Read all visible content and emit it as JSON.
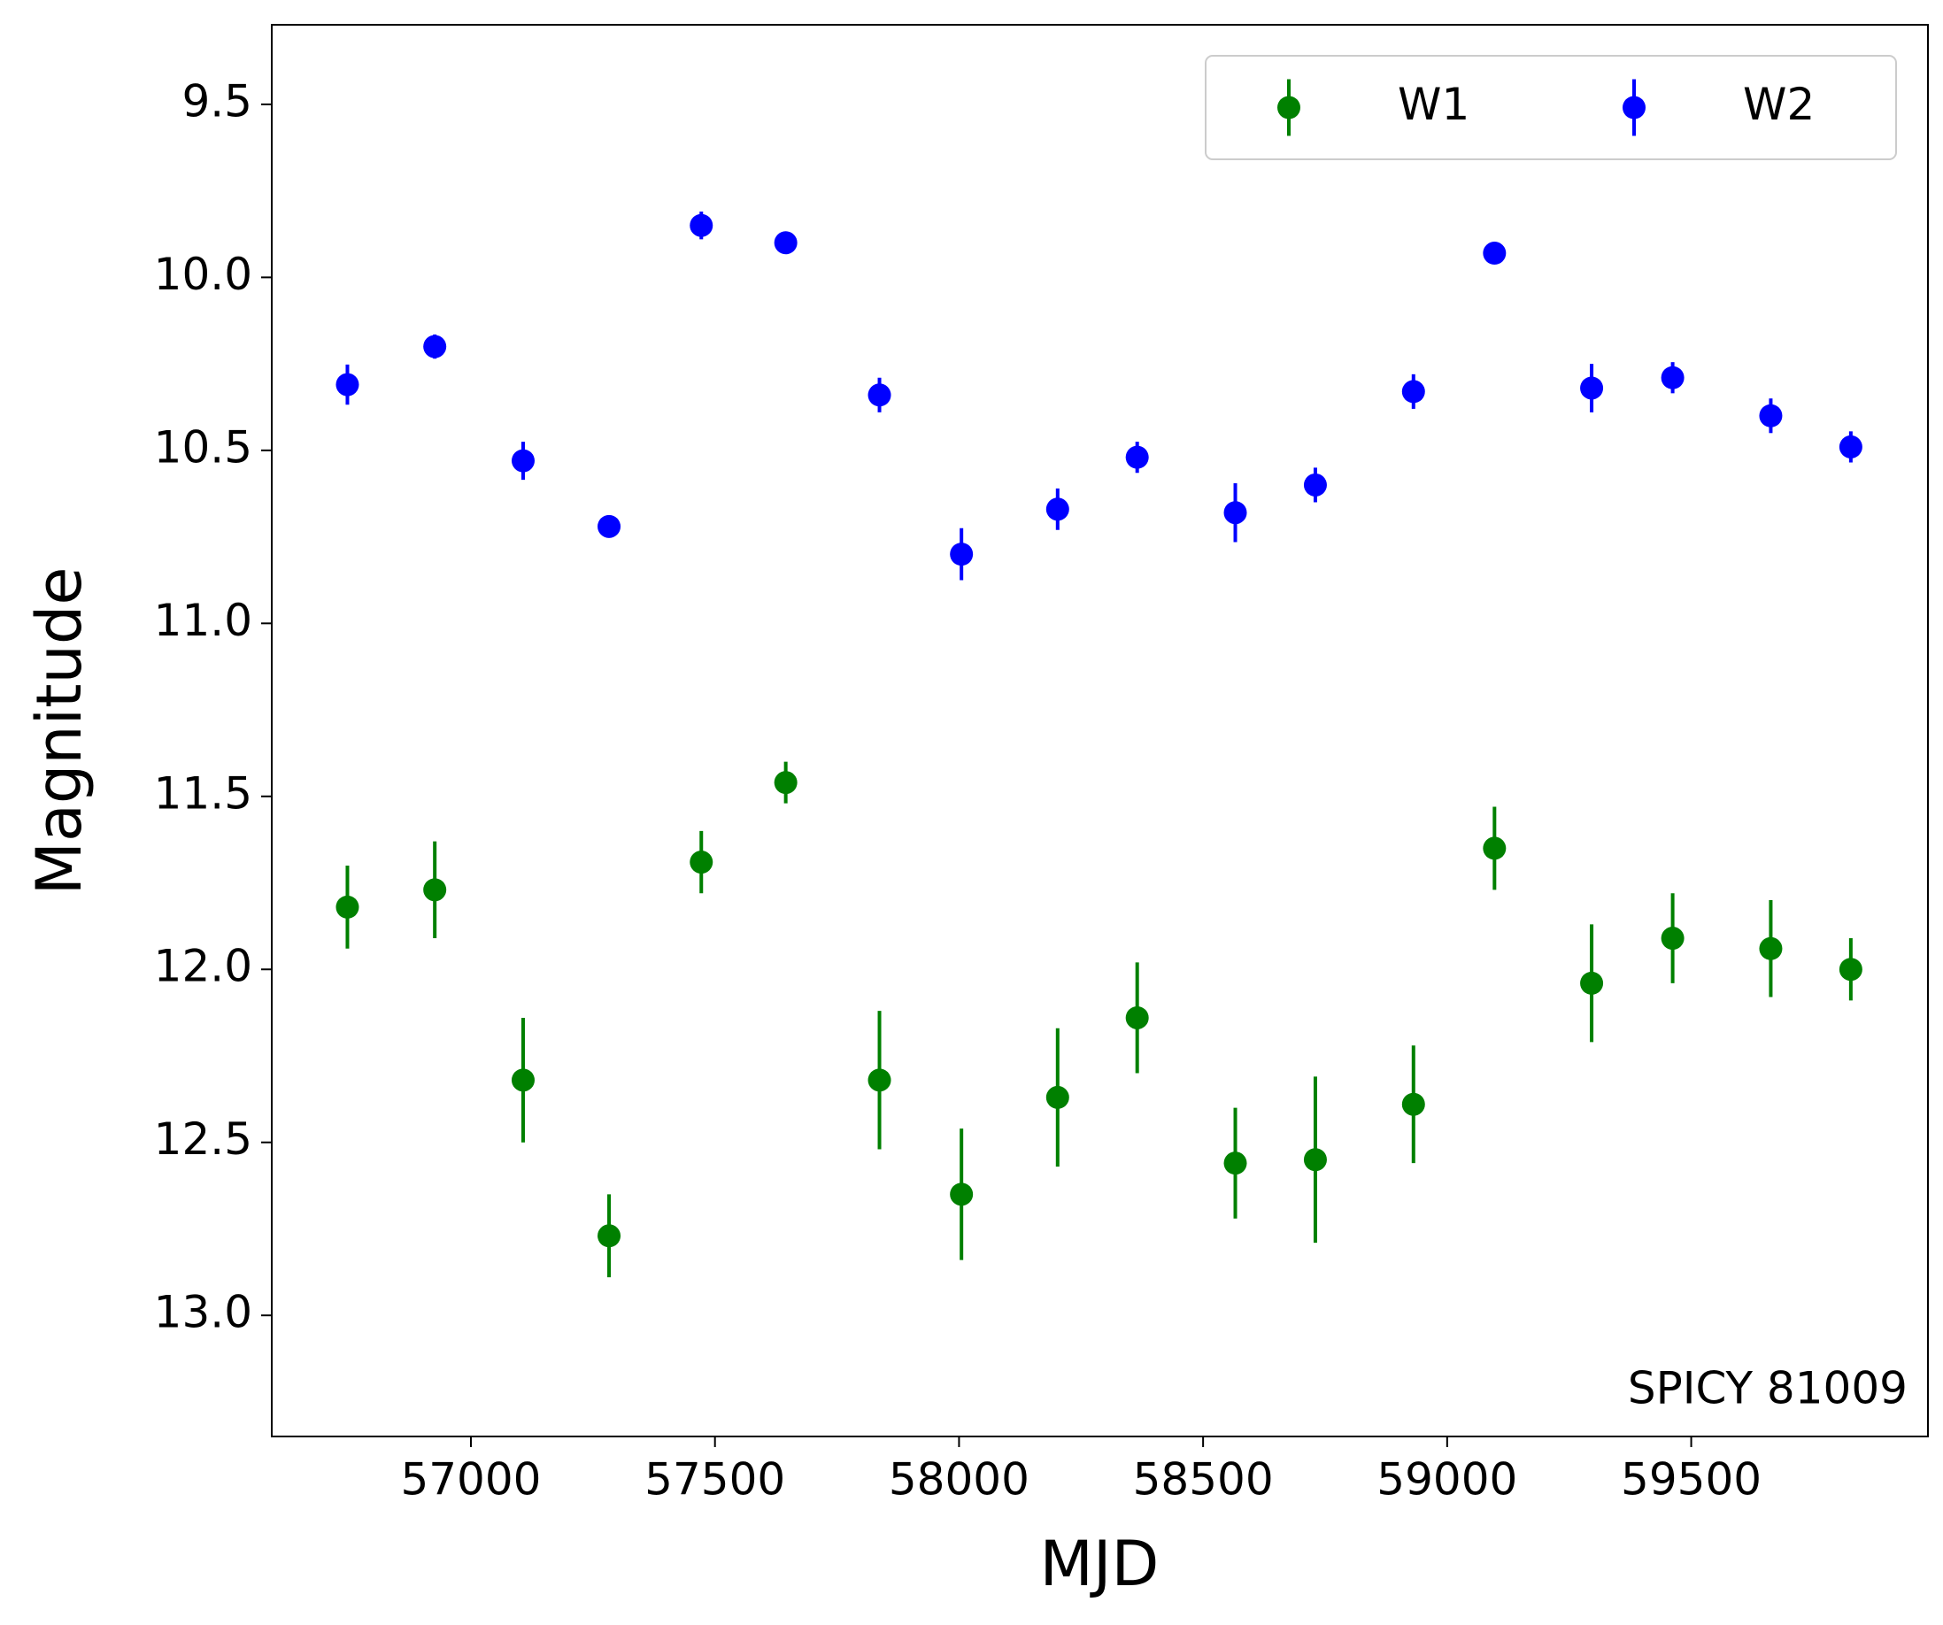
{
  "chart_data": {
    "type": "errorbar",
    "xlabel": "MJD",
    "ylabel": "Magnitude",
    "annotation": "SPICY 81009",
    "x": [
      56747,
      56926,
      57107,
      57283,
      57472,
      57645,
      57837,
      58005,
      58202,
      58365,
      58566,
      58730,
      58931,
      59097,
      59296,
      59462,
      59663,
      59827
    ],
    "series": [
      {
        "name": "W1",
        "color": "#008000",
        "values": [
          11.82,
          11.77,
          12.32,
          12.77,
          11.69,
          11.46,
          12.32,
          12.65,
          12.37,
          12.14,
          12.56,
          12.55,
          12.39,
          11.65,
          12.04,
          11.91,
          11.94,
          12.0
        ],
        "errors": [
          0.12,
          0.14,
          0.18,
          0.12,
          0.09,
          0.06,
          0.2,
          0.19,
          0.2,
          0.16,
          0.16,
          0.24,
          0.17,
          0.12,
          0.17,
          0.13,
          0.14,
          0.09
        ]
      },
      {
        "name": "W2",
        "color": "#0000ff",
        "values": [
          10.31,
          10.2,
          10.53,
          10.72,
          9.85,
          9.9,
          10.34,
          10.8,
          10.67,
          10.52,
          10.68,
          10.6,
          10.33,
          9.93,
          10.32,
          10.29,
          10.4,
          10.49
        ],
        "errors": [
          0.058,
          0.035,
          0.055,
          0.03,
          0.04,
          0.03,
          0.05,
          0.075,
          0.06,
          0.045,
          0.085,
          0.05,
          0.05,
          0.025,
          0.07,
          0.045,
          0.05,
          0.045
        ]
      }
    ],
    "xlim": [
      56592,
      59985
    ],
    "xticks": [
      57000,
      57500,
      58000,
      58500,
      59000,
      59500
    ],
    "ylim": [
      13.35,
      9.27
    ],
    "yticks": [
      9.5,
      {
        "value": 10.0,
        "label": "10.0"
      },
      10.5,
      {
        "value": 11.0,
        "label": "11.0"
      },
      11.5,
      {
        "value": 12.0,
        "label": "12.0"
      },
      12.5,
      {
        "value": 13.0,
        "label": "13.0"
      }
    ],
    "legend": "upper right",
    "grid": false
  }
}
